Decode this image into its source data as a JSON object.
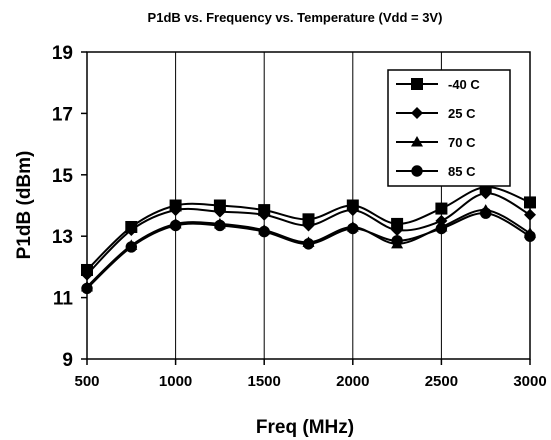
{
  "chart_data": {
    "type": "line",
    "title": "P1dB vs. Frequency vs. Temperature (Vdd = 3V)",
    "xlabel": "Freq (MHz)",
    "ylabel": "P1dB (dBm)",
    "xlim": [
      500,
      3000
    ],
    "ylim": [
      9,
      19
    ],
    "xticks": [
      "500",
      "1000",
      "1500",
      "2000",
      "2500",
      "3000"
    ],
    "yticks": [
      "9",
      "11",
      "13",
      "15",
      "17",
      "19"
    ],
    "grid": "vertical",
    "legend": "top-right",
    "x": [
      500,
      750,
      1000,
      1250,
      1500,
      1750,
      2000,
      2250,
      2500,
      2750,
      3000
    ],
    "series": [
      {
        "name": "-40 C",
        "marker": "square",
        "values": [
          11.9,
          13.3,
          14.0,
          14.0,
          13.85,
          13.55,
          14.0,
          13.4,
          13.9,
          14.6,
          14.1
        ]
      },
      {
        "name": "25 C",
        "marker": "diamond",
        "values": [
          11.75,
          13.2,
          13.85,
          13.8,
          13.7,
          13.35,
          13.85,
          13.2,
          13.5,
          14.4,
          13.7
        ]
      },
      {
        "name": "70 C",
        "marker": "triangle",
        "values": [
          11.35,
          12.7,
          13.4,
          13.4,
          13.2,
          12.8,
          13.3,
          12.75,
          13.3,
          13.85,
          13.1
        ]
      },
      {
        "name": "85 C",
        "marker": "circle",
        "values": [
          11.3,
          12.65,
          13.35,
          13.35,
          13.15,
          12.75,
          13.25,
          12.85,
          13.25,
          13.75,
          13.0
        ]
      }
    ]
  }
}
